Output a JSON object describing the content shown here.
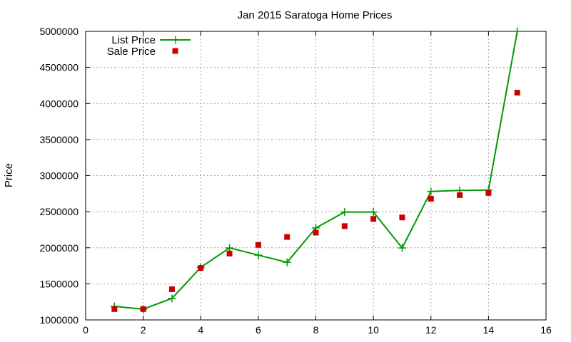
{
  "chart_data": {
    "type": "line",
    "title": "Jan 2015 Saratoga Home Prices",
    "xlabel": "",
    "ylabel": "Price",
    "xlim": [
      0,
      16
    ],
    "ylim": [
      1000000,
      5000000
    ],
    "x_ticks": [
      0,
      2,
      4,
      6,
      8,
      10,
      12,
      14,
      16
    ],
    "y_ticks": [
      1000000,
      1500000,
      2000000,
      2500000,
      3000000,
      3500000,
      4000000,
      4500000,
      5000000
    ],
    "x_tick_labels": [
      "0",
      "2",
      "4",
      "6",
      "8",
      "10",
      "12",
      "14",
      "16"
    ],
    "y_tick_labels": [
      "1000000",
      "1500000",
      "2000000",
      "2500000",
      "3000000",
      "3500000",
      "4000000",
      "4500000",
      "5000000"
    ],
    "grid": true,
    "legend_position": "top-left",
    "series": [
      {
        "name": "List Price",
        "style": "line-with-plus-markers",
        "color": "#009900",
        "x": [
          1,
          2,
          3,
          4,
          5,
          6,
          7,
          8,
          9,
          10,
          11,
          12,
          13,
          14,
          15
        ],
        "values": [
          1188000,
          1150000,
          1298000,
          1728000,
          1998000,
          1898000,
          1798000,
          2275000,
          2495000,
          2495000,
          1998000,
          2780000,
          2795000,
          2800000,
          5000000
        ]
      },
      {
        "name": "Sale Price",
        "style": "square-markers",
        "color": "#cc0000",
        "x": [
          1,
          2,
          3,
          4,
          5,
          6,
          7,
          8,
          9,
          10,
          11,
          12,
          13,
          14,
          15
        ],
        "values": [
          1150000,
          1150000,
          1425000,
          1720000,
          1920000,
          2040000,
          2150000,
          2210000,
          2300000,
          2400000,
          2420000,
          2680000,
          2730000,
          2760000,
          4150000
        ]
      }
    ]
  }
}
